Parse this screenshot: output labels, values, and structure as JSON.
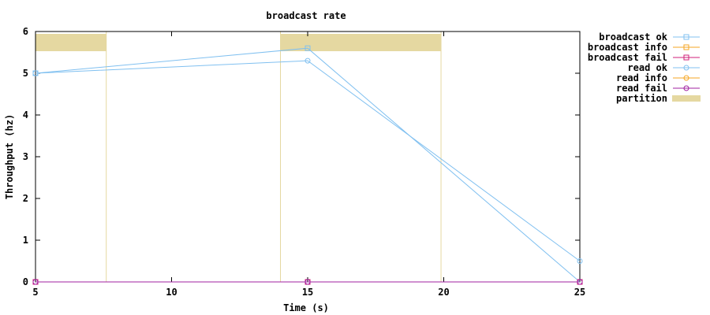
{
  "chart_data": {
    "type": "line",
    "title": "broadcast rate",
    "xlabel": "Time (s)",
    "ylabel": "Throughput (hz)",
    "xlim": [
      5,
      25
    ],
    "ylim": [
      0,
      6
    ],
    "xticks": [
      5,
      10,
      15,
      20,
      25
    ],
    "yticks": [
      0,
      1,
      2,
      3,
      4,
      5,
      6
    ],
    "grid": false,
    "legend_position": "outside-right-top",
    "partitions": [
      [
        5,
        7.6
      ],
      [
        14,
        19.9
      ]
    ],
    "partition_color": "#e5d8a1",
    "series": [
      {
        "name": "broadcast ok",
        "color": "#80c0f0",
        "marker": "square",
        "x": [
          5,
          15,
          25
        ],
        "y": [
          5,
          5.6,
          0
        ]
      },
      {
        "name": "broadcast info",
        "color": "#f5a623",
        "marker": "square",
        "x": [],
        "y": []
      },
      {
        "name": "broadcast fail",
        "color": "#d0207a",
        "marker": "square",
        "x": [
          5,
          15,
          25
        ],
        "y": [
          0,
          0,
          0
        ]
      },
      {
        "name": "read ok",
        "color": "#80c0f0",
        "marker": "circle",
        "x": [
          5,
          15,
          25
        ],
        "y": [
          5,
          5.3,
          0.5
        ]
      },
      {
        "name": "read info",
        "color": "#f5a623",
        "marker": "circle",
        "x": [],
        "y": []
      },
      {
        "name": "read fail",
        "color": "#a020a0",
        "marker": "circle",
        "x": [
          5,
          15,
          25
        ],
        "y": [
          0,
          0,
          0
        ]
      }
    ],
    "partition_label": "partition"
  }
}
